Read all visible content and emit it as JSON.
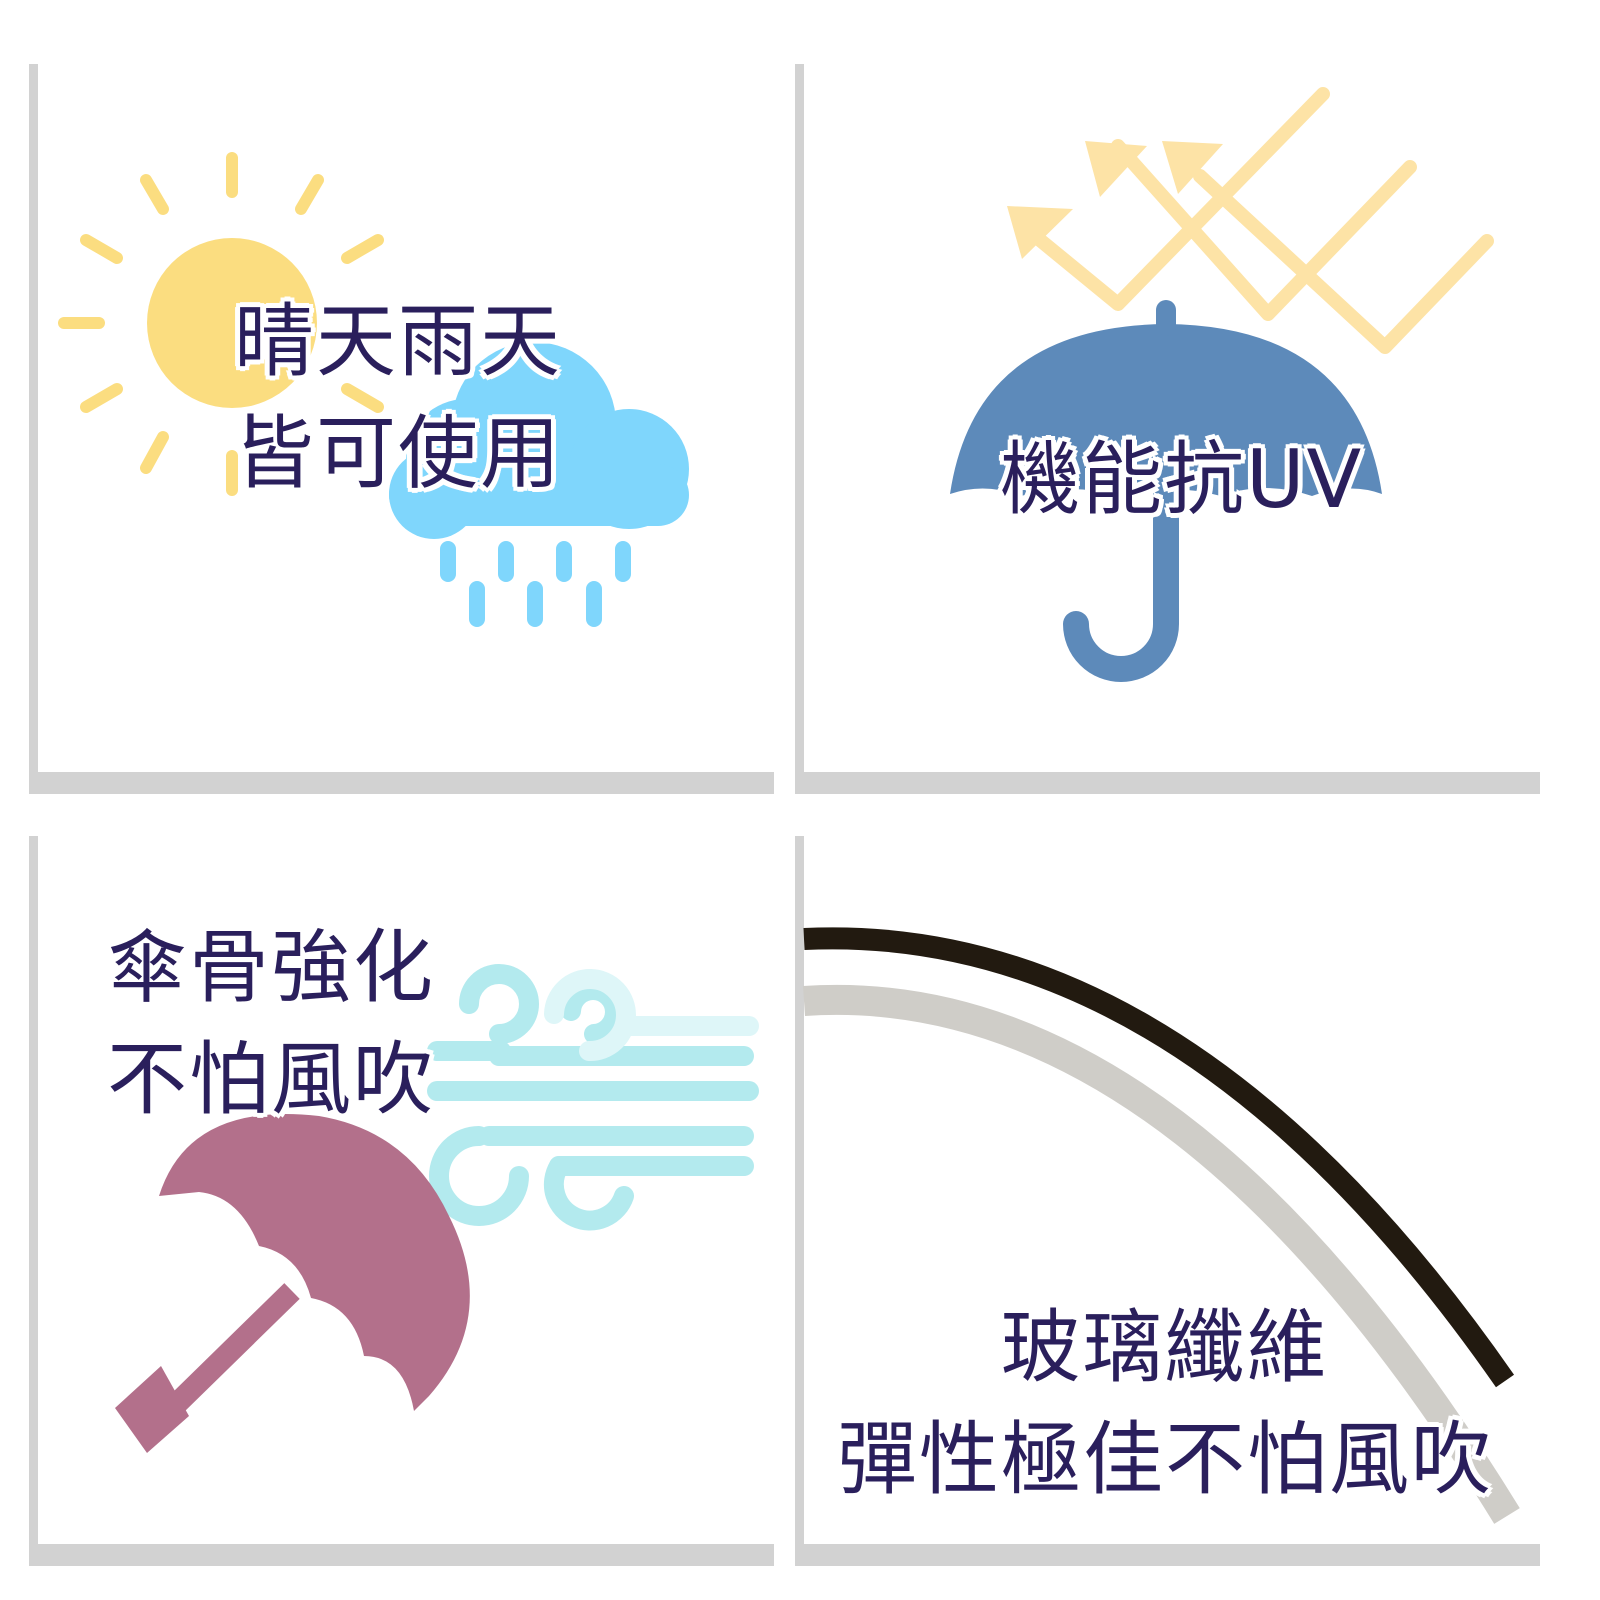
{
  "panels": [
    {
      "id": "weather",
      "icon": "sun-cloud-rain-icon",
      "lines": [
        "晴天雨天",
        "皆可使用"
      ]
    },
    {
      "id": "uv",
      "icon": "umbrella-uv-icon",
      "lines": [
        "機能抗UV"
      ]
    },
    {
      "id": "ribs",
      "icon": "umbrella-wind-icon",
      "lines": [
        "傘骨強化",
        "不怕風吹"
      ]
    },
    {
      "id": "fiberglass",
      "icon": "curved-rib-icon",
      "lines": [
        "玻璃纖維",
        "彈性極佳不怕風吹"
      ]
    }
  ],
  "colors": {
    "text": "#2a1f5c",
    "sun": "#fbdd80",
    "cloud": "#7fd6fc",
    "uv_rays": "#fde3a6",
    "umbrella_blue": "#5d8aba",
    "umbrella_mauve": "#b3708b",
    "wind": "#b3eaee",
    "rib_dark": "#221a10",
    "rib_shadow": "#cfcdc8",
    "panel_edge": "#d2d2d2"
  }
}
